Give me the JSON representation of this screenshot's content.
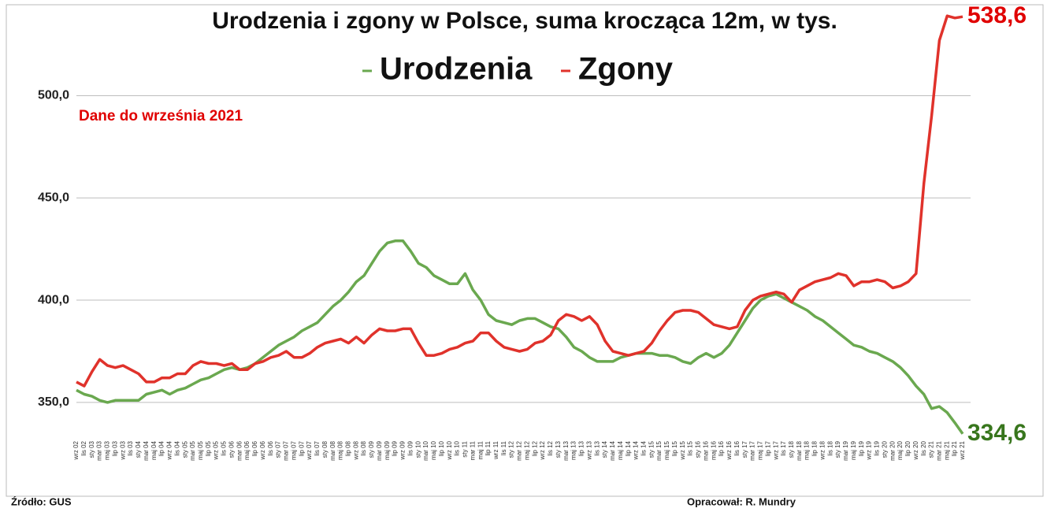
{
  "chart_data": {
    "type": "line",
    "title": "Urodzenia i zgony w Polsce, suma krocząca 12m, w tys.",
    "annotation": "Dane do września 2021",
    "source": "Źródło: GUS",
    "author": "Opracował: R. Mundry",
    "categories": [
      "wrz 02",
      "lis 02",
      "sty 03",
      "mar 03",
      "maj 03",
      "lip 03",
      "wrz 03",
      "lis 03",
      "sty 04",
      "mar 04",
      "maj 04",
      "lip 04",
      "wrz 04",
      "lis 04",
      "sty 05",
      "mar 05",
      "maj 05",
      "lip 05",
      "wrz 05",
      "lis 05",
      "sty 06",
      "mar 06",
      "maj 06",
      "lip 06",
      "wrz 06",
      "lis 06",
      "sty 07",
      "mar 07",
      "maj 07",
      "lip 07",
      "wrz 07",
      "lis 07",
      "sty 08",
      "mar 08",
      "maj 08",
      "lip 08",
      "wrz 08",
      "lis 08",
      "sty 09",
      "mar 09",
      "maj 09",
      "lip 09",
      "wrz 09",
      "lis 09",
      "sty 10",
      "mar 10",
      "maj 10",
      "lip 10",
      "wrz 10",
      "lis 10",
      "sty 11",
      "mar 11",
      "maj 11",
      "lip 11",
      "wrz 11",
      "lis 11",
      "sty 12",
      "mar 12",
      "maj 12",
      "lip 12",
      "wrz 12",
      "lis 12",
      "sty 13",
      "mar 13",
      "maj 13",
      "lip 13",
      "wrz 13",
      "lis 13",
      "sty 14",
      "mar 14",
      "maj 14",
      "lip 14",
      "wrz 14",
      "lis 14",
      "sty 15",
      "mar 15",
      "maj 15",
      "lip 15",
      "wrz 15",
      "lis 15",
      "sty 16",
      "mar 16",
      "maj 16",
      "lip 16",
      "wrz 16",
      "lis 16",
      "sty 17",
      "mar 17",
      "maj 17",
      "lip 17",
      "wrz 17",
      "lis 17",
      "sty 18",
      "mar 18",
      "maj 18",
      "lip 18",
      "wrz 18",
      "lis 18",
      "sty 19",
      "mar 19",
      "maj 19",
      "lip 19",
      "wrz 19",
      "lis 19",
      "sty 20",
      "mar 20",
      "maj 20",
      "lip 20",
      "wrz 20",
      "lis 20",
      "sty 21",
      "mar 21",
      "maj 21",
      "lip 21",
      "wrz 21"
    ],
    "series": [
      {
        "name": "Urodzenia",
        "color": "#6aa84f",
        "end_label": "334,6",
        "end_label_color": "#38761d",
        "values": [
          356,
          354,
          353,
          351,
          350,
          351,
          351,
          351,
          351,
          354,
          355,
          356,
          354,
          356,
          357,
          359,
          361,
          362,
          364,
          366,
          367,
          366,
          367,
          369,
          372,
          375,
          378,
          380,
          382,
          385,
          387,
          389,
          393,
          397,
          400,
          404,
          409,
          412,
          418,
          424,
          428,
          429,
          429,
          424,
          418,
          416,
          412,
          410,
          408,
          408,
          413,
          405,
          400,
          393,
          390,
          389,
          388,
          390,
          391,
          391,
          389,
          387,
          386,
          382,
          377,
          375,
          372,
          370,
          370,
          370,
          372,
          373,
          374,
          374,
          374,
          373,
          373,
          372,
          370,
          369,
          372,
          374,
          372,
          374,
          378,
          384,
          390,
          396,
          400,
          402,
          403,
          401,
          399,
          397,
          395,
          392,
          390,
          387,
          384,
          381,
          378,
          377,
          375,
          374,
          372,
          370,
          367,
          363,
          358,
          354,
          347,
          348,
          345,
          340,
          334.6
        ]
      },
      {
        "name": "Zgony",
        "color": "#e0322b",
        "end_label": "538,6",
        "end_label_color": "#e00000",
        "values": [
          360,
          358,
          365,
          371,
          368,
          367,
          368,
          366,
          364,
          360,
          360,
          362,
          362,
          364,
          364,
          368,
          370,
          369,
          369,
          368,
          369,
          366,
          366,
          369,
          370,
          372,
          373,
          375,
          372,
          372,
          374,
          377,
          379,
          380,
          381,
          379,
          382,
          379,
          383,
          386,
          385,
          385,
          386,
          386,
          379,
          373,
          373,
          374,
          376,
          377,
          379,
          380,
          384,
          384,
          380,
          377,
          376,
          375,
          376,
          379,
          380,
          383,
          390,
          393,
          392,
          390,
          392,
          388,
          380,
          375,
          374,
          373,
          374,
          375,
          379,
          385,
          390,
          394,
          395,
          395,
          394,
          391,
          388,
          387,
          386,
          387,
          395,
          400,
          402,
          403,
          404,
          403,
          399,
          405,
          407,
          409,
          410,
          411,
          413,
          412,
          407,
          409,
          409,
          410,
          409,
          406,
          407,
          409,
          413,
          457,
          490,
          527,
          539,
          538,
          538.6
        ]
      }
    ],
    "ylim": [
      333,
      541
    ],
    "yticks": [
      {
        "value": 350,
        "label": "350,0"
      },
      {
        "value": 400,
        "label": "400,0"
      },
      {
        "value": 450,
        "label": "450,0"
      },
      {
        "value": 500,
        "label": "500,0"
      }
    ],
    "grid": true
  }
}
